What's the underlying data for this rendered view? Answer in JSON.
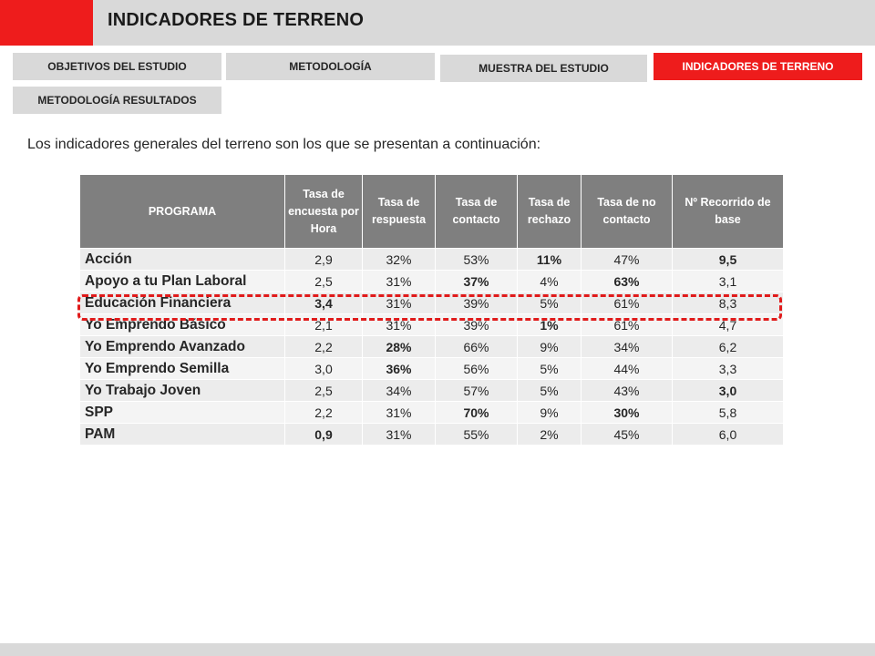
{
  "header": {
    "title": "INDICADORES DE TERRENO"
  },
  "tabs": [
    {
      "label": "OBJETIVOS DEL ESTUDIO"
    },
    {
      "label": "METODOLOGÍA"
    },
    {
      "label": "MUESTRA DEL ESTUDIO"
    },
    {
      "label": "INDICADORES DE TERRENO",
      "active": true
    },
    {
      "label": "METODOLOGÍA RESULTADOS"
    }
  ],
  "intro": "Los indicadores generales del terreno son los que se presentan a continuación:",
  "table": {
    "headers": [
      "PROGRAMA",
      "Tasa de encuesta por Hora",
      "Tasa de respuesta",
      "Tasa de contacto",
      "Tasa de rechazo",
      "Tasa de no contacto",
      "Nº Recorrido de base"
    ],
    "rows": [
      {
        "programa": "Acción",
        "cells": [
          {
            "v": "2,9"
          },
          {
            "v": "32%"
          },
          {
            "v": "53%"
          },
          {
            "v": "11%",
            "c": "red"
          },
          {
            "v": "47%"
          },
          {
            "v": "9,5",
            "c": "red"
          }
        ]
      },
      {
        "programa": "Apoyo a tu Plan Laboral",
        "cells": [
          {
            "v": "2,5"
          },
          {
            "v": "31%"
          },
          {
            "v": "37%",
            "c": "red"
          },
          {
            "v": "4%"
          },
          {
            "v": "63%",
            "c": "red"
          },
          {
            "v": "3,1"
          }
        ]
      },
      {
        "programa": "Educación Financiera",
        "cells": [
          {
            "v": "3,4",
            "c": "green"
          },
          {
            "v": "31%"
          },
          {
            "v": "39%"
          },
          {
            "v": "5%"
          },
          {
            "v": "61%"
          },
          {
            "v": "8,3"
          }
        ]
      },
      {
        "programa": "Yo Emprendo Básico",
        "cells": [
          {
            "v": "2,1"
          },
          {
            "v": "31%"
          },
          {
            "v": "39%"
          },
          {
            "v": "1%",
            "c": "green"
          },
          {
            "v": "61%"
          },
          {
            "v": "4,7"
          }
        ]
      },
      {
        "programa": "Yo Emprendo Avanzado",
        "cells": [
          {
            "v": "2,2"
          },
          {
            "v": "28%",
            "c": "red"
          },
          {
            "v": "66%"
          },
          {
            "v": "9%"
          },
          {
            "v": "34%"
          },
          {
            "v": "6,2"
          }
        ]
      },
      {
        "programa": "Yo Emprendo Semilla",
        "cells": [
          {
            "v": "3,0"
          },
          {
            "v": "36%",
            "c": "green"
          },
          {
            "v": "56%"
          },
          {
            "v": "5%"
          },
          {
            "v": "44%"
          },
          {
            "v": "3,3"
          }
        ]
      },
      {
        "programa": "Yo Trabajo Joven",
        "cells": [
          {
            "v": "2,5"
          },
          {
            "v": "34%"
          },
          {
            "v": "57%"
          },
          {
            "v": "5%"
          },
          {
            "v": "43%"
          },
          {
            "v": "3,0",
            "c": "green"
          }
        ]
      },
      {
        "programa": "SPP",
        "cells": [
          {
            "v": "2,2"
          },
          {
            "v": "31%"
          },
          {
            "v": "70%",
            "c": "green"
          },
          {
            "v": "9%"
          },
          {
            "v": "30%",
            "c": "green"
          },
          {
            "v": "5,8"
          }
        ]
      },
      {
        "programa": "PAM",
        "cells": [
          {
            "v": "0,9",
            "c": "red"
          },
          {
            "v": "31%"
          },
          {
            "v": "55%"
          },
          {
            "v": "2%"
          },
          {
            "v": "45%"
          },
          {
            "v": "6,0"
          }
        ]
      }
    ],
    "highlighted_row": "Educación Financiera"
  },
  "colors": {
    "accent": "#ee1c1c",
    "good": "#1fa64a",
    "bad": "#e01b1b",
    "header_bg": "#7f7f7f",
    "tab_bg": "#d9d9d9"
  }
}
